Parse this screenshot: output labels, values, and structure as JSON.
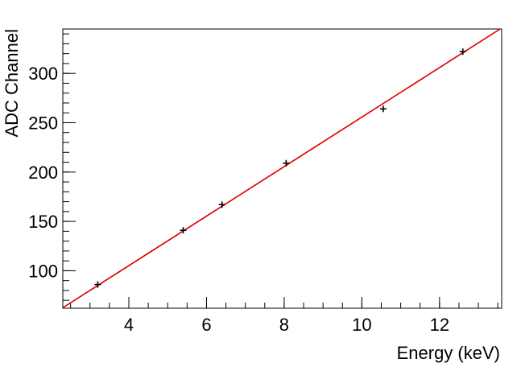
{
  "chart_data": {
    "type": "scatter",
    "title": "",
    "xlabel": "Energy (keV)",
    "ylabel": "ADC Channel",
    "xlim": [
      2.3,
      13.6
    ],
    "ylim": [
      62,
      345
    ],
    "x_ticks": [
      4,
      6,
      8,
      10,
      12
    ],
    "y_ticks": [
      100,
      150,
      200,
      250,
      300
    ],
    "x_minor_step": 0.5,
    "y_minor_step": 10,
    "grid": false,
    "legend": "none",
    "marker_color": "#000000",
    "fit_line_color": "#e00000",
    "series": [
      {
        "kind": "points",
        "x": [
          3.2,
          5.4,
          6.4,
          8.05,
          10.55,
          12.6
        ],
        "y": [
          86,
          141,
          167,
          209,
          264,
          322
        ]
      },
      {
        "kind": "fit_line",
        "x": [
          2.3,
          13.6
        ],
        "y": [
          62.5,
          346
        ]
      }
    ]
  }
}
